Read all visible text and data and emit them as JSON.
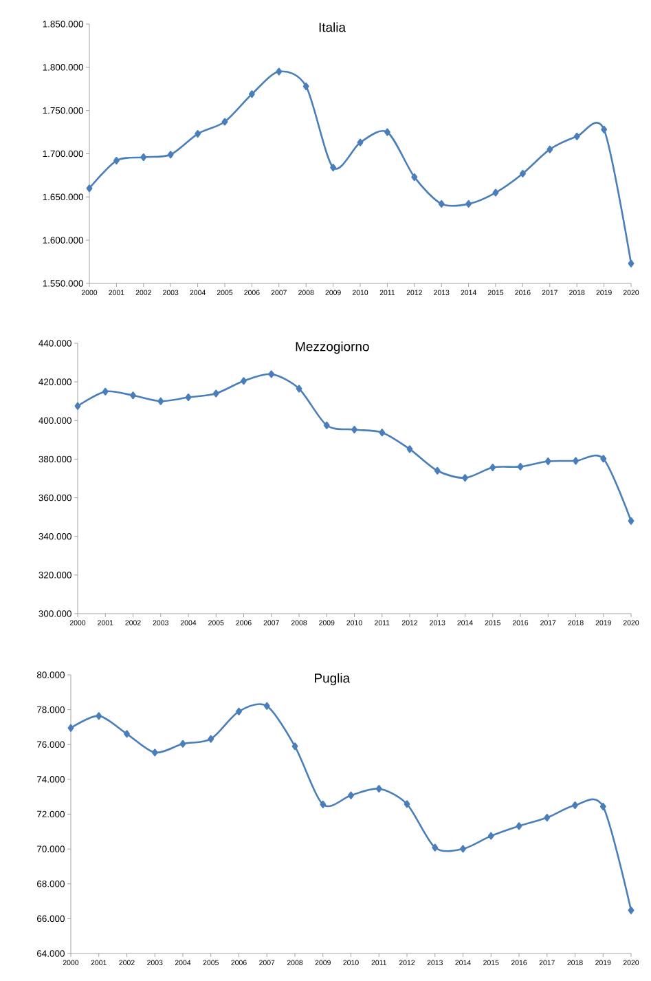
{
  "chart_data": [
    {
      "type": "line",
      "title": "Italia",
      "categories": [
        "2000",
        "2001",
        "2002",
        "2003",
        "2004",
        "2005",
        "2006",
        "2007",
        "2008",
        "2009",
        "2010",
        "2011",
        "2012",
        "2013",
        "2014",
        "2015",
        "2016",
        "2017",
        "2018",
        "2019",
        "2020"
      ],
      "values": [
        1660000,
        1692000,
        1696000,
        1699000,
        1723000,
        1737000,
        1769000,
        1795000,
        1778000,
        1684000,
        1713000,
        1725000,
        1673000,
        1642000,
        1642000,
        1655000,
        1677000,
        1705000,
        1720000,
        1728000,
        1573000
      ],
      "color": "#4a7ebb",
      "marker": "diamond",
      "line_style": "solid",
      "grid": false,
      "ylim": [
        1550000,
        1850000
      ],
      "yticks": [
        {
          "value": 1550000,
          "label": "1.550.000"
        },
        {
          "value": 1600000,
          "label": "1.600.000"
        },
        {
          "value": 1650000,
          "label": "1.650.000"
        },
        {
          "value": 1700000,
          "label": "1.700.000"
        },
        {
          "value": 1750000,
          "label": "1.750.000"
        },
        {
          "value": 1800000,
          "label": "1.800.000"
        },
        {
          "value": 1850000,
          "label": "1.850.000"
        }
      ]
    },
    {
      "type": "line",
      "title": "Mezzogiorno",
      "categories": [
        "2000",
        "2001",
        "2002",
        "2003",
        "2004",
        "2005",
        "2006",
        "2007",
        "2008",
        "2009",
        "2010",
        "2011",
        "2012",
        "2013",
        "2014",
        "2015",
        "2016",
        "2017",
        "2018",
        "2019",
        "2020"
      ],
      "values": [
        407500,
        415000,
        413000,
        410000,
        412000,
        414000,
        420500,
        424000,
        416500,
        397500,
        395300,
        393800,
        385200,
        374000,
        370300,
        375700,
        376100,
        378900,
        379100,
        380200,
        348000
      ],
      "color": "#4a7ebb",
      "marker": "diamond",
      "line_style": "solid",
      "grid": false,
      "ylim": [
        300000,
        440000
      ],
      "yticks": [
        {
          "value": 300000,
          "label": "300.000"
        },
        {
          "value": 320000,
          "label": "320.000"
        },
        {
          "value": 340000,
          "label": "340.000"
        },
        {
          "value": 360000,
          "label": "360.000"
        },
        {
          "value": 380000,
          "label": "380.000"
        },
        {
          "value": 400000,
          "label": "400.000"
        },
        {
          "value": 420000,
          "label": "420.000"
        },
        {
          "value": 440000,
          "label": "440.000"
        }
      ]
    },
    {
      "type": "line",
      "title": "Puglia",
      "categories": [
        "2000",
        "2001",
        "2002",
        "2003",
        "2004",
        "2005",
        "2006",
        "2007",
        "2008",
        "2009",
        "2010",
        "2011",
        "2012",
        "2013",
        "2014",
        "2015",
        "2016",
        "2017",
        "2018",
        "2019",
        "2020"
      ],
      "values": [
        76950,
        77640,
        76610,
        75540,
        76040,
        76320,
        77900,
        78210,
        75900,
        72560,
        73080,
        73460,
        72580,
        70080,
        70010,
        70750,
        71320,
        71800,
        72510,
        72440,
        66480
      ],
      "color": "#4a7ebb",
      "marker": "diamond",
      "line_style": "solid",
      "grid": false,
      "ylim": [
        64000,
        80000
      ],
      "yticks": [
        {
          "value": 64000,
          "label": "64.000"
        },
        {
          "value": 66000,
          "label": "66.000"
        },
        {
          "value": 68000,
          "label": "68.000"
        },
        {
          "value": 70000,
          "label": "70.000"
        },
        {
          "value": 72000,
          "label": "72.000"
        },
        {
          "value": 74000,
          "label": "74.000"
        },
        {
          "value": 76000,
          "label": "76.000"
        },
        {
          "value": 78000,
          "label": "78.000"
        },
        {
          "value": 80000,
          "label": "80.000"
        }
      ]
    }
  ]
}
